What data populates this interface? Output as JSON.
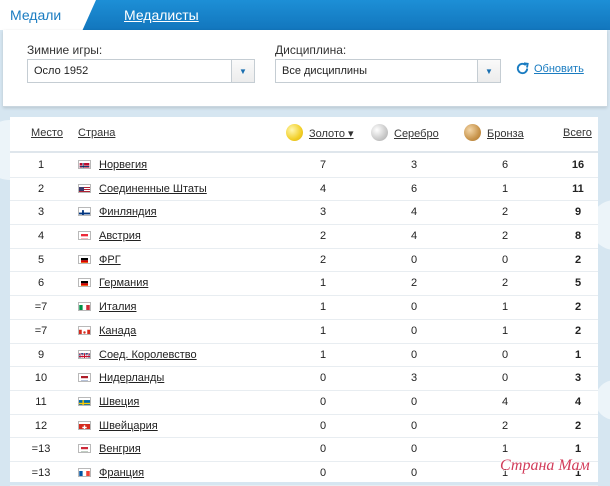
{
  "tabs": [
    {
      "label": "Медали",
      "active": true
    },
    {
      "label": "Медалисты",
      "active": false
    }
  ],
  "filters": {
    "games_label": "Зимние игры:",
    "games_value": "Осло 1952",
    "discipline_label": "Дисциплина:",
    "discipline_value": "Все дисциплины",
    "refresh_label": "Обновить"
  },
  "table": {
    "headers": {
      "rank": "Место",
      "country": "Страна",
      "gold": "Золото ▾",
      "silver": "Серебро",
      "bronze": "Бронза",
      "total": "Всего"
    },
    "medal_colors": {
      "gold": "#f2cf27",
      "silver": "#c9c9c9",
      "bronze": "#c8944b"
    },
    "rows": [
      {
        "rank": "1",
        "country": "Норвегия",
        "flag": "norway",
        "gold": "7",
        "silver": "3",
        "bronze": "6",
        "total": "16"
      },
      {
        "rank": "2",
        "country": "Соединенные Штаты",
        "flag": "usa",
        "gold": "4",
        "silver": "6",
        "bronze": "1",
        "total": "11"
      },
      {
        "rank": "3",
        "country": "Финляндия",
        "flag": "finland",
        "gold": "3",
        "silver": "4",
        "bronze": "2",
        "total": "9"
      },
      {
        "rank": "4",
        "country": "Австрия",
        "flag": "austria",
        "gold": "2",
        "silver": "4",
        "bronze": "2",
        "total": "8"
      },
      {
        "rank": "5",
        "country": "ФРГ",
        "flag": "frg",
        "gold": "2",
        "silver": "0",
        "bronze": "0",
        "total": "2"
      },
      {
        "rank": "6",
        "country": "Германия",
        "flag": "germany",
        "gold": "1",
        "silver": "2",
        "bronze": "2",
        "total": "5"
      },
      {
        "rank": "=7",
        "country": "Италия",
        "flag": "italy",
        "gold": "1",
        "silver": "0",
        "bronze": "1",
        "total": "2"
      },
      {
        "rank": "=7",
        "country": "Канада",
        "flag": "canada",
        "gold": "1",
        "silver": "0",
        "bronze": "1",
        "total": "2"
      },
      {
        "rank": "9",
        "country": "Соед. Королевство",
        "flag": "uk",
        "gold": "1",
        "silver": "0",
        "bronze": "0",
        "total": "1"
      },
      {
        "rank": "10",
        "country": "Нидерланды",
        "flag": "netherlands",
        "gold": "0",
        "silver": "3",
        "bronze": "0",
        "total": "3"
      },
      {
        "rank": "11",
        "country": "Швеция",
        "flag": "sweden",
        "gold": "0",
        "silver": "0",
        "bronze": "4",
        "total": "4"
      },
      {
        "rank": "12",
        "country": "Швейцария",
        "flag": "switzerland",
        "gold": "0",
        "silver": "0",
        "bronze": "2",
        "total": "2"
      },
      {
        "rank": "=13",
        "country": "Венгрия",
        "flag": "hungary",
        "gold": "0",
        "silver": "0",
        "bronze": "1",
        "total": "1"
      },
      {
        "rank": "=13",
        "country": "Франция",
        "flag": "france",
        "gold": "0",
        "silver": "0",
        "bronze": "1",
        "total": "1"
      }
    ]
  },
  "watermark": "Страна Мам"
}
